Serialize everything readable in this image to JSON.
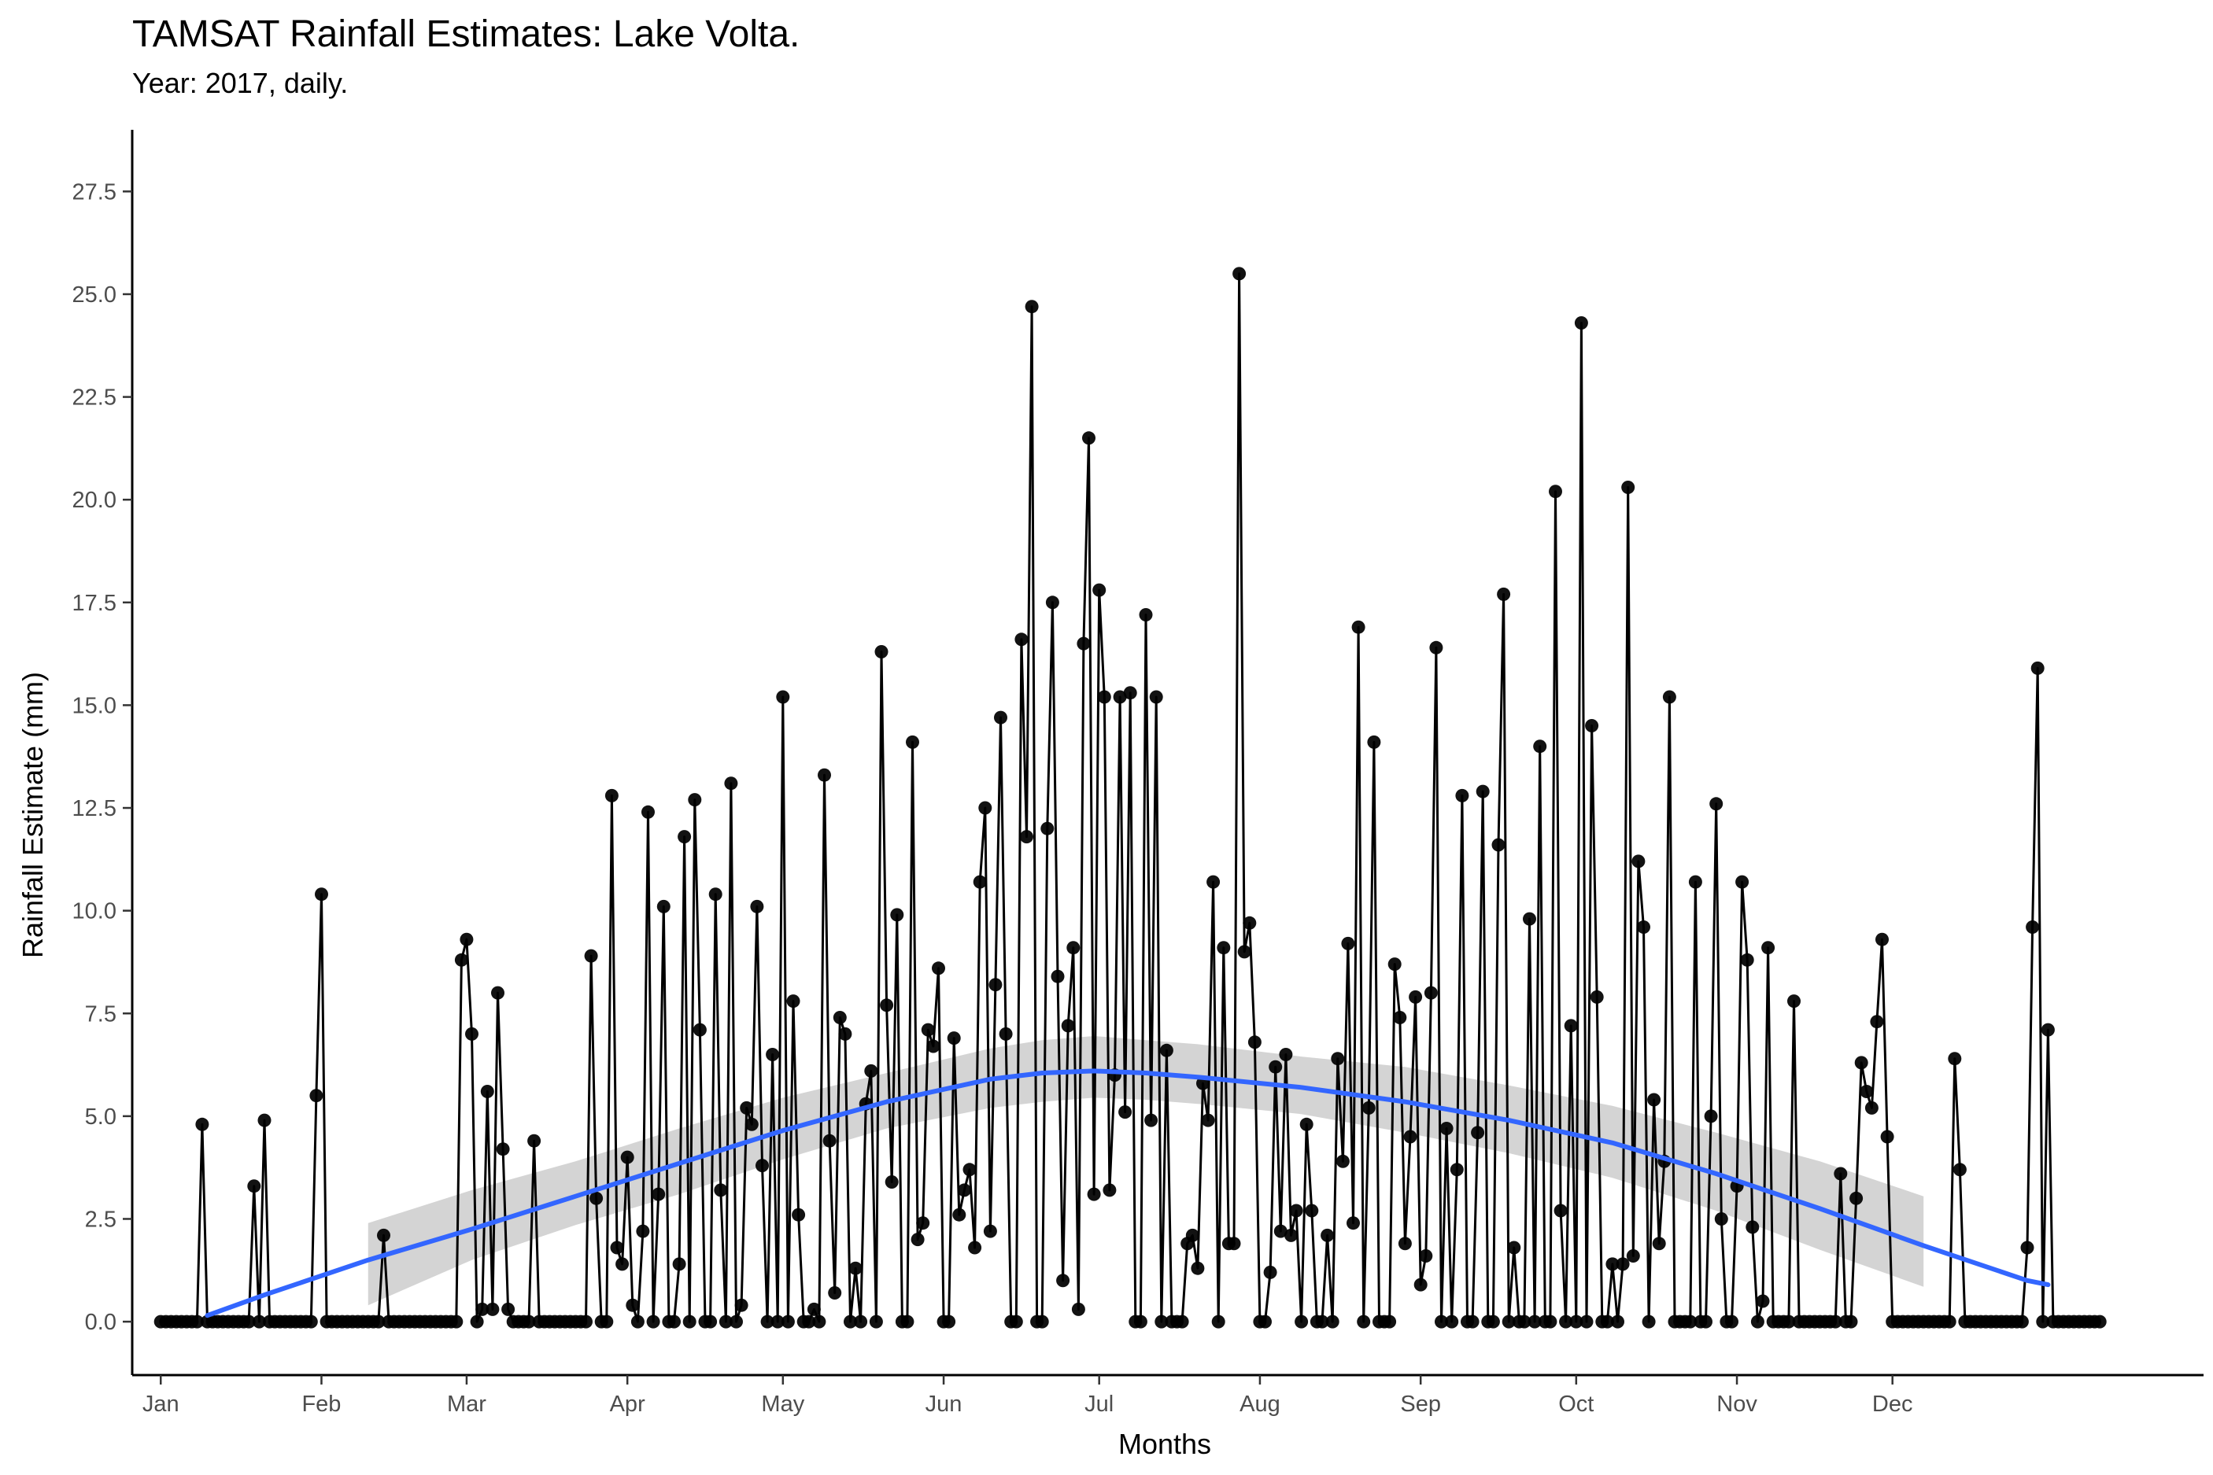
{
  "chart_data": {
    "type": "line",
    "title": "TAMSAT Rainfall Estimates: Lake Volta.",
    "subtitle": "Year: 2017, daily.",
    "xlabel": "Months",
    "ylabel": "Rainfall Estimate (mm)",
    "ylim": [
      -1.3,
      29.0
    ],
    "yticks": [
      0.0,
      2.5,
      5.0,
      7.5,
      10.0,
      12.5,
      15.0,
      17.5,
      20.0,
      22.5,
      25.0,
      27.5
    ],
    "ytick_labels": [
      "0.0",
      "2.5",
      "5.0",
      "7.5",
      "10.0",
      "12.5",
      "15.0",
      "17.5",
      "20.0",
      "22.5",
      "25.0",
      "27.5"
    ],
    "xlim_day": [
      -5.5,
      394
    ],
    "month_ticks": [
      {
        "label": "Jan",
        "day": 0
      },
      {
        "label": "Feb",
        "day": 31
      },
      {
        "label": "Mar",
        "day": 59
      },
      {
        "label": "Apr",
        "day": 90
      },
      {
        "label": "May",
        "day": 120
      },
      {
        "label": "Jun",
        "day": 151
      },
      {
        "label": "Jul",
        "day": 181
      },
      {
        "label": "Aug",
        "day": 212
      },
      {
        "label": "Sep",
        "day": 243
      },
      {
        "label": "Oct",
        "day": 273
      },
      {
        "label": "Nov",
        "day": 304
      },
      {
        "label": "Dec",
        "day": 334
      }
    ],
    "grid": false,
    "legend": "none",
    "colors": {
      "series": "#000000",
      "smooth": "#3366FF",
      "ribbon": "#cccccc"
    },
    "series": [
      {
        "values": [
          0,
          0,
          0,
          0,
          0,
          0,
          0,
          0,
          4.8,
          0,
          0,
          0,
          0,
          0,
          0,
          0,
          0,
          0,
          3.3,
          0,
          4.9,
          0,
          0,
          0,
          0,
          0,
          0,
          0,
          0,
          0,
          5.5,
          10.4,
          0,
          0,
          0,
          0,
          0,
          0,
          0,
          0,
          0,
          0,
          0,
          2.1,
          0,
          0,
          0,
          0,
          0,
          0,
          0,
          0,
          0,
          0,
          0,
          0,
          0,
          0,
          8.8,
          9.3,
          7.0,
          0,
          0.3,
          5.6,
          0.3,
          8.0,
          4.2,
          0.3,
          0,
          0,
          0,
          0,
          4.4,
          0,
          0,
          0,
          0,
          0,
          0,
          0,
          0,
          0,
          0,
          8.9,
          3.0,
          0,
          0,
          12.8,
          1.8,
          1.4,
          4.0,
          0.4,
          0,
          2.2,
          12.4,
          0,
          3.1,
          10.1,
          0,
          0,
          1.4,
          11.8,
          0,
          12.7,
          7.1,
          0,
          0,
          10.4,
          3.2,
          0,
          13.1,
          0,
          0.4,
          5.2,
          4.8,
          10.1,
          3.8,
          0,
          6.5,
          0,
          15.2,
          0,
          7.8,
          2.6,
          0,
          0,
          0.3,
          0,
          13.3,
          4.4,
          0.7,
          7.4,
          7.0,
          0,
          1.3,
          0,
          5.3,
          6.1,
          0,
          16.3,
          7.7,
          3.4,
          9.9,
          0,
          0,
          14.1,
          2.0,
          2.4,
          7.1,
          6.7,
          8.6,
          0,
          0,
          6.9,
          2.6,
          3.2,
          3.7,
          1.8,
          10.7,
          12.5,
          2.2,
          8.2,
          14.7,
          7.0,
          0,
          0,
          16.6,
          11.8,
          24.7,
          0,
          0,
          12.0,
          17.5,
          8.4,
          1.0,
          7.2,
          9.1,
          0.3,
          16.5,
          21.5,
          3.1,
          17.8,
          15.2,
          3.2,
          6.0,
          15.2,
          5.1,
          15.3,
          0,
          0,
          17.2,
          4.9,
          15.2,
          0,
          6.6,
          0,
          0,
          0,
          1.9,
          2.1,
          1.3,
          5.8,
          4.9,
          10.7,
          0,
          9.1,
          1.9,
          1.9,
          25.5,
          9.0,
          9.7,
          6.8,
          0,
          0,
          1.2,
          6.2,
          2.2,
          6.5,
          2.1,
          2.7,
          0,
          4.8,
          2.7,
          0,
          0,
          2.1,
          0,
          6.4,
          3.9,
          9.2,
          2.4,
          16.9,
          0,
          5.2,
          14.1,
          0,
          0,
          0,
          8.7,
          7.4,
          1.9,
          4.5,
          7.9,
          0.9,
          1.6,
          8.0,
          16.4,
          0,
          4.7,
          0,
          3.7,
          12.8,
          0,
          0,
          4.6,
          12.9,
          0,
          0,
          11.6,
          17.7,
          0,
          1.8,
          0,
          0,
          9.8,
          0,
          14.0,
          0,
          0,
          20.2,
          2.7,
          0,
          7.2,
          0,
          24.3,
          0,
          14.5,
          7.9,
          0,
          0,
          1.4,
          0,
          1.4,
          20.3,
          1.6,
          11.2,
          9.6,
          0,
          5.4,
          1.9,
          3.9,
          15.2,
          0,
          0,
          0,
          0,
          10.7,
          0,
          0,
          5.0,
          12.6,
          2.5,
          0,
          0,
          3.3,
          10.7,
          8.8,
          2.3,
          0,
          0.5,
          9.1,
          0,
          0,
          0,
          0,
          7.8,
          0,
          0,
          0,
          0,
          0,
          0,
          0,
          0,
          3.6,
          0,
          0,
          3.0,
          6.3,
          5.6,
          5.2,
          7.3,
          9.3,
          4.5,
          0,
          0,
          0,
          0,
          0,
          0,
          0,
          0,
          0,
          0,
          0,
          0,
          6.4,
          3.7,
          0,
          0,
          0,
          0,
          0,
          0,
          0,
          0,
          0,
          0,
          0,
          0,
          1.8,
          9.6,
          15.9,
          0,
          7.1,
          0,
          0,
          0,
          0,
          0,
          0,
          0,
          0,
          0,
          0
        ]
      }
    ],
    "smooth": {
      "day": [
        9,
        20,
        40,
        60,
        80,
        100,
        120,
        140,
        160,
        170,
        180,
        190,
        200,
        220,
        240,
        260,
        280,
        300,
        320,
        340,
        360,
        364
      ],
      "value": [
        0.15,
        0.65,
        1.5,
        2.25,
        3.05,
        3.85,
        4.65,
        5.35,
        5.9,
        6.05,
        6.1,
        6.05,
        5.95,
        5.7,
        5.35,
        4.9,
        4.35,
        3.6,
        2.75,
        1.85,
        1.0,
        0.9
      ],
      "lower": [
        null,
        null,
        0.4,
        1.5,
        2.35,
        3.1,
        3.95,
        4.7,
        5.2,
        5.35,
        5.45,
        5.4,
        5.3,
        5.05,
        4.6,
        4.1,
        3.5,
        2.7,
        1.75,
        0.85,
        null,
        null
      ],
      "upper": [
        null,
        null,
        2.4,
        3.2,
        3.9,
        4.7,
        5.45,
        6.05,
        6.65,
        6.85,
        6.95,
        6.85,
        6.75,
        6.45,
        6.2,
        5.75,
        5.25,
        4.6,
        3.9,
        3.05,
        null,
        null
      ]
    }
  }
}
